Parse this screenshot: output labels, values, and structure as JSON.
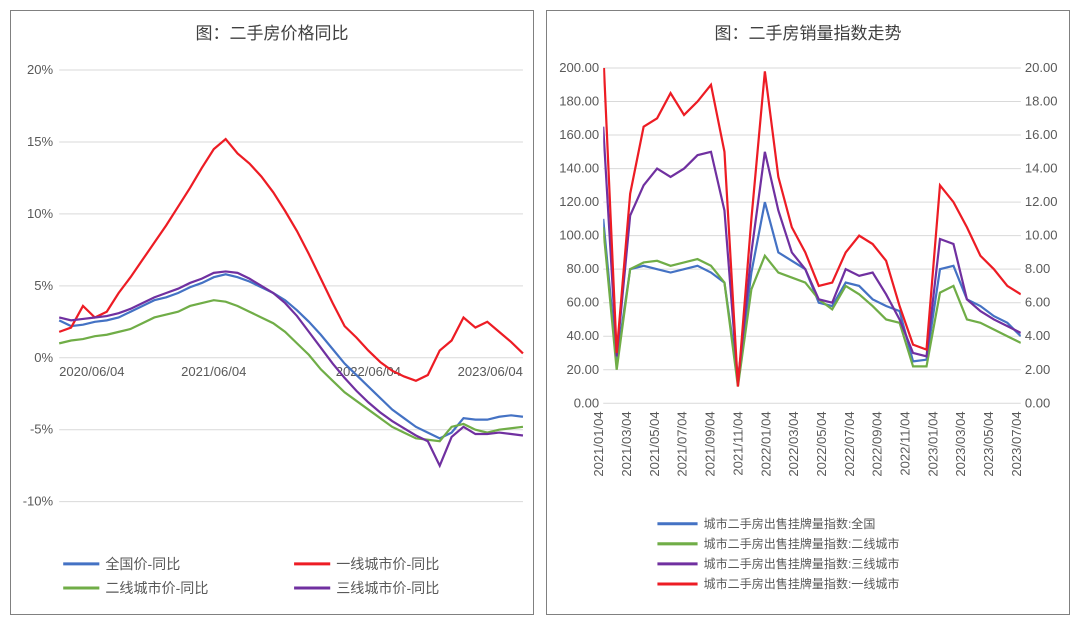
{
  "left_chart": {
    "type": "line",
    "title": "图：二手房价格同比",
    "title_fontsize": 17,
    "background_color": "#ffffff",
    "grid_color": "#d9d9d9",
    "line_width": 2.2,
    "ylabel_format": "percent",
    "ylim": [
      -10,
      20
    ],
    "ytick_step": 5,
    "yticks": [
      "-10%",
      "-5%",
      "0%",
      "5%",
      "10%",
      "15%",
      "20%"
    ],
    "x_labels": [
      "2020/06/04",
      "2021/06/04",
      "2022/06/04",
      "2023/06/04"
    ],
    "x_count": 40,
    "series": [
      {
        "name": "全国价-同比",
        "color": "#4472c4",
        "data": [
          2.6,
          2.2,
          2.3,
          2.5,
          2.6,
          2.8,
          3.2,
          3.6,
          4.0,
          4.2,
          4.5,
          4.9,
          5.2,
          5.6,
          5.8,
          5.6,
          5.3,
          4.9,
          4.5,
          4.0,
          3.3,
          2.5,
          1.6,
          0.6,
          -0.4,
          -1.2,
          -2.0,
          -2.8,
          -3.6,
          -4.2,
          -4.8,
          -5.2,
          -5.6,
          -5.2,
          -4.2,
          -4.3,
          -4.3,
          -4.1,
          -4.0,
          -4.1
        ]
      },
      {
        "name": "一线城市价-同比",
        "color": "#ed1c24",
        "data": [
          1.8,
          2.1,
          3.6,
          2.8,
          3.2,
          4.5,
          5.6,
          6.8,
          8.0,
          9.2,
          10.5,
          11.8,
          13.2,
          14.5,
          15.2,
          14.2,
          13.5,
          12.6,
          11.5,
          10.2,
          8.8,
          7.2,
          5.5,
          3.8,
          2.2,
          1.4,
          0.5,
          -0.3,
          -0.9,
          -1.3,
          -1.6,
          -1.2,
          0.5,
          1.2,
          2.8,
          2.1,
          2.5,
          1.8,
          1.1,
          0.3
        ]
      },
      {
        "name": "二线城市价-同比",
        "color": "#70ad47",
        "data": [
          1.0,
          1.2,
          1.3,
          1.5,
          1.6,
          1.8,
          2.0,
          2.4,
          2.8,
          3.0,
          3.2,
          3.6,
          3.8,
          4.0,
          3.9,
          3.6,
          3.2,
          2.8,
          2.4,
          1.8,
          1.0,
          0.2,
          -0.8,
          -1.6,
          -2.4,
          -3.0,
          -3.6,
          -4.2,
          -4.8,
          -5.2,
          -5.6,
          -5.7,
          -5.8,
          -4.8,
          -4.6,
          -5.0,
          -5.2,
          -5.0,
          -4.9,
          -4.8
        ]
      },
      {
        "name": "三线城市价-同比",
        "color": "#7030a0",
        "data": [
          2.8,
          2.6,
          2.7,
          2.8,
          2.9,
          3.1,
          3.4,
          3.8,
          4.2,
          4.5,
          4.8,
          5.2,
          5.5,
          5.9,
          6.0,
          5.9,
          5.5,
          5.0,
          4.5,
          3.8,
          2.9,
          1.8,
          0.7,
          -0.4,
          -1.4,
          -2.3,
          -3.1,
          -3.8,
          -4.4,
          -4.9,
          -5.4,
          -5.8,
          -7.5,
          -5.5,
          -4.8,
          -5.3,
          -5.3,
          -5.2,
          -5.3,
          -5.4
        ]
      }
    ],
    "legend": {
      "position": "bottom",
      "items": [
        "全国价-同比",
        "一线城市价-同比",
        "二线城市价-同比",
        "三线城市价-同比"
      ],
      "fontsize": 14
    }
  },
  "right_chart": {
    "type": "line_dual_axis",
    "title": "图：二手房销量指数走势",
    "title_fontsize": 17,
    "background_color": "#ffffff",
    "grid_color": "#d9d9d9",
    "line_width": 2.2,
    "ylim_left": [
      0,
      200
    ],
    "ytick_left_step": 20,
    "yticks_left": [
      "0.00",
      "20.00",
      "40.00",
      "60.00",
      "80.00",
      "100.00",
      "120.00",
      "140.00",
      "160.00",
      "180.00",
      "200.00"
    ],
    "ylim_right": [
      0,
      20
    ],
    "ytick_right_step": 2,
    "yticks_right": [
      "0.00",
      "2.00",
      "4.00",
      "6.00",
      "8.00",
      "10.00",
      "12.00",
      "14.00",
      "16.00",
      "18.00",
      "20.00"
    ],
    "x_labels": [
      "2021/01/04",
      "2021/03/04",
      "2021/05/04",
      "2021/07/04",
      "2021/09/04",
      "2021/11/04",
      "2022/01/04",
      "2022/03/04",
      "2022/05/04",
      "2022/07/04",
      "2022/09/04",
      "2022/11/04",
      "2023/01/04",
      "2023/03/04",
      "2023/05/04",
      "2023/07/04"
    ],
    "x_count": 32,
    "series": [
      {
        "name": "城市二手房出售挂牌量指数:全国",
        "color": "#4472c4",
        "axis": "left",
        "data": [
          110,
          25,
          80,
          82,
          80,
          78,
          80,
          82,
          78,
          72,
          15,
          78,
          120,
          90,
          85,
          80,
          60,
          58,
          72,
          70,
          62,
          58,
          55,
          25,
          26,
          80,
          82,
          62,
          58,
          52,
          48,
          40
        ]
      },
      {
        "name": "城市二手房出售挂牌量指数:二线城市",
        "color": "#70ad47",
        "axis": "left",
        "data": [
          105,
          20,
          80,
          84,
          85,
          82,
          84,
          86,
          82,
          72,
          10,
          68,
          88,
          78,
          75,
          72,
          62,
          56,
          70,
          65,
          58,
          50,
          48,
          22,
          22,
          66,
          70,
          50,
          48,
          44,
          40,
          36
        ]
      },
      {
        "name": "城市二手房出售挂牌量指数:三线城市",
        "color": "#7030a0",
        "axis": "left",
        "data": [
          165,
          28,
          112,
          130,
          140,
          135,
          140,
          148,
          150,
          115,
          12,
          90,
          150,
          115,
          90,
          80,
          62,
          60,
          80,
          76,
          78,
          65,
          50,
          30,
          28,
          98,
          95,
          62,
          55,
          50,
          46,
          42
        ]
      },
      {
        "name": "城市二手房出售挂牌量指数:一线城市",
        "color": "#ed1c24",
        "axis": "left",
        "data": [
          210,
          30,
          125,
          165,
          170,
          185,
          172,
          180,
          190,
          150,
          10,
          110,
          198,
          135,
          105,
          90,
          70,
          72,
          90,
          100,
          95,
          85,
          58,
          35,
          32,
          130,
          120,
          105,
          88,
          80,
          70,
          65
        ]
      }
    ],
    "legend": {
      "position": "bottom",
      "items": [
        "城市二手房出售挂牌量指数:全国",
        "城市二手房出售挂牌量指数:二线城市",
        "城市二手房出售挂牌量指数:三线城市",
        "城市二手房出售挂牌量指数:一线城市"
      ],
      "fontsize": 12
    }
  }
}
